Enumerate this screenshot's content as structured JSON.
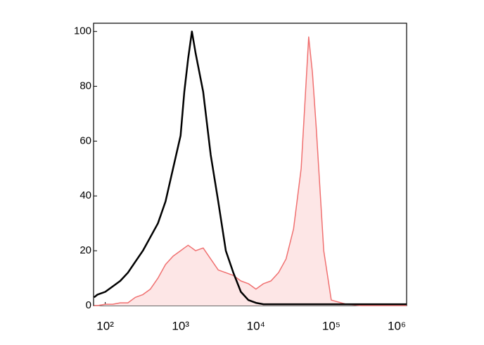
{
  "chart_data": {
    "type": "histogram-overlay",
    "x": [
      71,
      79,
      100,
      126,
      158,
      200,
      251,
      316,
      398,
      501,
      631,
      794,
      1000,
      1122,
      1259,
      1413,
      1585,
      1995,
      2512,
      3162,
      3981,
      5012,
      6310,
      7943,
      10000,
      12589,
      15849,
      19953,
      25119,
      31623,
      39811,
      50119,
      56234,
      63096,
      79433,
      100000,
      158489,
      251189,
      398107,
      630957,
      1000000
    ],
    "series": [
      {
        "color": "#000000",
        "fill": "none",
        "values": [
          3,
          4,
          5,
          7,
          9,
          12,
          16,
          20,
          25,
          30,
          38,
          50,
          62,
          78,
          90,
          100,
          92,
          78,
          55,
          38,
          20,
          12,
          5,
          2,
          1,
          0.5,
          0.5,
          0.5,
          0.5,
          0.5,
          0.5,
          0.5,
          0.5,
          0.5,
          0.5,
          0.5,
          0.5,
          0.5,
          0.5,
          0.5,
          0.5
        ]
      },
      {
        "color": "#f07070",
        "fill": "#fde6e6",
        "values": [
          0,
          0,
          0.5,
          0.5,
          1,
          1,
          3,
          4,
          6,
          10,
          15,
          18,
          20,
          21,
          22,
          21,
          20,
          21,
          17,
          13,
          12,
          11,
          9,
          8,
          6,
          8,
          9,
          12,
          17,
          28,
          50,
          98,
          85,
          65,
          20,
          2,
          0.5,
          0,
          0,
          0,
          0
        ]
      }
    ],
    "xscale": "log",
    "xlim": [
      70,
      1000000
    ],
    "xticks": [
      {
        "value": 100,
        "label": "10²"
      },
      {
        "value": 1000,
        "label": "10³"
      },
      {
        "value": 10000,
        "label": "10⁴"
      },
      {
        "value": 100000,
        "label": "10⁵"
      },
      {
        "value": 1000000,
        "label": "10⁶"
      }
    ],
    "ylim": [
      0,
      103
    ],
    "yticks": [
      0,
      20,
      40,
      60,
      80,
      100
    ]
  }
}
